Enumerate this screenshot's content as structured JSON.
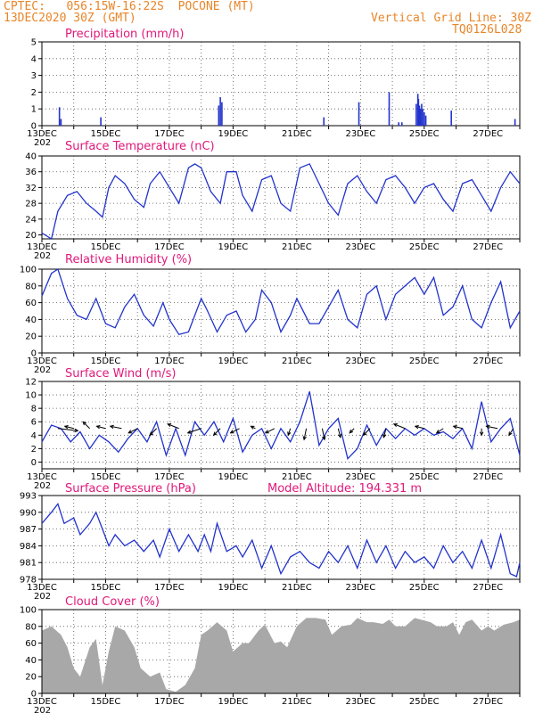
{
  "header": {
    "line1": "CPTEC:   056:15W-16:22S  POCONE (MT)",
    "line2": "13DEC2020 30Z (GMT)",
    "grid_note": "Vertical Grid Line: 30Z",
    "code": "TQ0126L028"
  },
  "colors": {
    "header": "#e8862a",
    "title": "#e0187a",
    "line": "#2233cc",
    "cloud": "#a8a8a8"
  },
  "x_axis": {
    "range_days": [
      13,
      28
    ],
    "tick_labels": [
      "13DEC",
      "15DEC",
      "17DEC",
      "19DEC",
      "21DEC",
      "23DEC",
      "25DEC",
      "27DEC"
    ],
    "year_fragment": "202"
  },
  "chart_data": [
    {
      "id": "precip",
      "type": "bar",
      "title": "Precipitation (mm/h)",
      "ylim": [
        0,
        5
      ],
      "yticks": [
        0,
        1,
        2,
        3,
        4,
        5
      ],
      "points": [
        [
          13.55,
          1.1
        ],
        [
          13.6,
          0.4
        ],
        [
          14.85,
          0.5
        ],
        [
          18.55,
          1.2
        ],
        [
          18.6,
          1.7
        ],
        [
          18.65,
          1.4
        ],
        [
          21.85,
          0.5
        ],
        [
          22.95,
          1.4
        ],
        [
          23.9,
          2.0
        ],
        [
          24.2,
          0.2
        ],
        [
          24.3,
          0.2
        ],
        [
          24.75,
          1.3
        ],
        [
          24.8,
          1.9
        ],
        [
          24.82,
          1.6
        ],
        [
          24.85,
          1.2
        ],
        [
          24.88,
          1.0
        ],
        [
          24.92,
          1.3
        ],
        [
          24.95,
          1.0
        ],
        [
          25.0,
          0.8
        ],
        [
          25.05,
          0.6
        ],
        [
          25.85,
          0.9
        ],
        [
          27.85,
          0.4
        ]
      ]
    },
    {
      "id": "temp",
      "type": "line",
      "title": "Surface Temperature (nC)",
      "ylim": [
        19,
        40
      ],
      "yticks": [
        20,
        24,
        28,
        32,
        36,
        40
      ],
      "points": [
        [
          13,
          20.5
        ],
        [
          13.3,
          19
        ],
        [
          13.5,
          26
        ],
        [
          13.8,
          30
        ],
        [
          14.1,
          31
        ],
        [
          14.4,
          28
        ],
        [
          14.7,
          26
        ],
        [
          14.9,
          24.5
        ],
        [
          15.1,
          32
        ],
        [
          15.3,
          35
        ],
        [
          15.6,
          33
        ],
        [
          15.9,
          29
        ],
        [
          16.2,
          27
        ],
        [
          16.4,
          33
        ],
        [
          16.7,
          36
        ],
        [
          17.0,
          32
        ],
        [
          17.3,
          28
        ],
        [
          17.6,
          37
        ],
        [
          17.8,
          38
        ],
        [
          18.0,
          37
        ],
        [
          18.3,
          31
        ],
        [
          18.6,
          28
        ],
        [
          18.8,
          36
        ],
        [
          19.1,
          36
        ],
        [
          19.3,
          30
        ],
        [
          19.6,
          26
        ],
        [
          19.9,
          34
        ],
        [
          20.2,
          35
        ],
        [
          20.5,
          28
        ],
        [
          20.8,
          26
        ],
        [
          21.1,
          37
        ],
        [
          21.4,
          38
        ],
        [
          21.7,
          33
        ],
        [
          22.0,
          28
        ],
        [
          22.3,
          25
        ],
        [
          22.6,
          33
        ],
        [
          22.9,
          35
        ],
        [
          23.2,
          31
        ],
        [
          23.5,
          28
        ],
        [
          23.8,
          34
        ],
        [
          24.1,
          35
        ],
        [
          24.4,
          32
        ],
        [
          24.7,
          28
        ],
        [
          25.0,
          32
        ],
        [
          25.3,
          33
        ],
        [
          25.6,
          29
        ],
        [
          25.9,
          26
        ],
        [
          26.2,
          33
        ],
        [
          26.5,
          34
        ],
        [
          26.8,
          30
        ],
        [
          27.1,
          26
        ],
        [
          27.4,
          32
        ],
        [
          27.7,
          36
        ],
        [
          28.0,
          33
        ]
      ]
    },
    {
      "id": "rh",
      "type": "line",
      "title": "Relative Humidity (%)",
      "ylim": [
        0,
        100
      ],
      "yticks": [
        0,
        20,
        40,
        60,
        80,
        100
      ],
      "points": [
        [
          13,
          68
        ],
        [
          13.3,
          95
        ],
        [
          13.5,
          100
        ],
        [
          13.8,
          65
        ],
        [
          14.1,
          45
        ],
        [
          14.4,
          40
        ],
        [
          14.7,
          65
        ],
        [
          15.0,
          35
        ],
        [
          15.3,
          30
        ],
        [
          15.6,
          55
        ],
        [
          15.9,
          70
        ],
        [
          16.2,
          45
        ],
        [
          16.5,
          32
        ],
        [
          16.8,
          60
        ],
        [
          17.0,
          40
        ],
        [
          17.3,
          22
        ],
        [
          17.6,
          25
        ],
        [
          18.0,
          65
        ],
        [
          18.2,
          50
        ],
        [
          18.5,
          25
        ],
        [
          18.8,
          45
        ],
        [
          19.1,
          50
        ],
        [
          19.4,
          25
        ],
        [
          19.7,
          40
        ],
        [
          19.9,
          75
        ],
        [
          20.2,
          60
        ],
        [
          20.5,
          25
        ],
        [
          20.8,
          45
        ],
        [
          21.0,
          65
        ],
        [
          21.4,
          35
        ],
        [
          21.7,
          35
        ],
        [
          22.0,
          55
        ],
        [
          22.3,
          75
        ],
        [
          22.6,
          40
        ],
        [
          22.9,
          30
        ],
        [
          23.2,
          70
        ],
        [
          23.5,
          80
        ],
        [
          23.8,
          40
        ],
        [
          24.1,
          70
        ],
        [
          24.4,
          80
        ],
        [
          24.7,
          90
        ],
        [
          25.0,
          70
        ],
        [
          25.3,
          90
        ],
        [
          25.6,
          45
        ],
        [
          25.9,
          55
        ],
        [
          26.2,
          80
        ],
        [
          26.5,
          40
        ],
        [
          26.8,
          30
        ],
        [
          27.1,
          60
        ],
        [
          27.4,
          85
        ],
        [
          27.7,
          30
        ],
        [
          28.0,
          50
        ]
      ]
    },
    {
      "id": "wind",
      "type": "line",
      "title": "Surface Wind (m/s)",
      "ylim": [
        -1,
        12
      ],
      "yticks": [
        0,
        2,
        4,
        6,
        8,
        10,
        12
      ],
      "points": [
        [
          13,
          3
        ],
        [
          13.3,
          5.5
        ],
        [
          13.6,
          5
        ],
        [
          13.9,
          3
        ],
        [
          14.2,
          4.5
        ],
        [
          14.5,
          2
        ],
        [
          14.8,
          4
        ],
        [
          15.1,
          3
        ],
        [
          15.4,
          1.5
        ],
        [
          15.7,
          3.5
        ],
        [
          16.0,
          5
        ],
        [
          16.3,
          3
        ],
        [
          16.6,
          6
        ],
        [
          16.9,
          1
        ],
        [
          17.2,
          5
        ],
        [
          17.5,
          1
        ],
        [
          17.8,
          6
        ],
        [
          18.1,
          4
        ],
        [
          18.4,
          6
        ],
        [
          18.7,
          3
        ],
        [
          19.0,
          6.5
        ],
        [
          19.3,
          1.5
        ],
        [
          19.6,
          4
        ],
        [
          19.9,
          5
        ],
        [
          20.2,
          2
        ],
        [
          20.5,
          5
        ],
        [
          20.8,
          3
        ],
        [
          21.1,
          6
        ],
        [
          21.4,
          10.5
        ],
        [
          21.7,
          2.5
        ],
        [
          22.0,
          5
        ],
        [
          22.3,
          6.5
        ],
        [
          22.6,
          0.5
        ],
        [
          22.9,
          2
        ],
        [
          23.2,
          5.5
        ],
        [
          23.5,
          2.5
        ],
        [
          23.8,
          5
        ],
        [
          24.1,
          3.5
        ],
        [
          24.4,
          5
        ],
        [
          24.7,
          4
        ],
        [
          25.0,
          5
        ],
        [
          25.3,
          4
        ],
        [
          25.6,
          4.5
        ],
        [
          25.9,
          3.5
        ],
        [
          26.2,
          5
        ],
        [
          26.5,
          2
        ],
        [
          26.8,
          9
        ],
        [
          27.1,
          3
        ],
        [
          27.4,
          5
        ],
        [
          27.7,
          6.5
        ],
        [
          28.0,
          1
        ]
      ],
      "vectors": [
        [
          13.5,
          4.5,
          -0.5
        ],
        [
          14.0,
          -2,
          0.5
        ],
        [
          14.5,
          -1.5,
          1.5
        ],
        [
          15.0,
          -2,
          0.5
        ],
        [
          15.5,
          -2.5,
          0.5
        ],
        [
          16.0,
          -2,
          -1
        ],
        [
          16.6,
          -1.5,
          -1.5
        ],
        [
          17.3,
          -2.5,
          1
        ],
        [
          18.0,
          -3,
          -1
        ],
        [
          18.6,
          -1.5,
          -1.5
        ],
        [
          19.2,
          -2,
          -1
        ],
        [
          19.7,
          -1,
          0.5
        ],
        [
          20.3,
          -2,
          -1
        ],
        [
          20.8,
          -0.5,
          -1.5
        ],
        [
          21.3,
          -0.5,
          -2.5
        ],
        [
          21.8,
          0.5,
          -2.5
        ],
        [
          22.3,
          0.5,
          -2
        ],
        [
          22.8,
          -1,
          -1
        ],
        [
          23.3,
          -1.5,
          -1.5
        ],
        [
          23.8,
          -0.5,
          -2
        ],
        [
          24.4,
          -2.5,
          1
        ],
        [
          25.0,
          -2,
          0.5
        ],
        [
          25.6,
          -1.5,
          -1
        ],
        [
          26.2,
          -2,
          0.5
        ],
        [
          26.8,
          0,
          -1.5
        ],
        [
          27.3,
          -2.5,
          0.5
        ],
        [
          27.8,
          -1,
          -1.5
        ]
      ]
    },
    {
      "id": "pressure",
      "type": "line",
      "title": "Surface Pressure (hPa)",
      "ylim": [
        978,
        993
      ],
      "yticks": [
        978,
        981,
        984,
        987,
        990,
        993
      ],
      "annotation": "Model Altitude: 194.331 m",
      "points": [
        [
          13,
          988
        ],
        [
          13.3,
          990
        ],
        [
          13.5,
          991.5
        ],
        [
          13.7,
          988
        ],
        [
          14.0,
          989
        ],
        [
          14.2,
          986
        ],
        [
          14.5,
          988
        ],
        [
          14.7,
          990
        ],
        [
          14.9,
          987
        ],
        [
          15.1,
          984
        ],
        [
          15.3,
          986
        ],
        [
          15.6,
          984
        ],
        [
          15.9,
          985
        ],
        [
          16.2,
          983
        ],
        [
          16.5,
          985
        ],
        [
          16.7,
          982
        ],
        [
          17.0,
          987
        ],
        [
          17.3,
          983
        ],
        [
          17.6,
          986
        ],
        [
          17.9,
          983
        ],
        [
          18.1,
          986
        ],
        [
          18.3,
          983
        ],
        [
          18.5,
          988
        ],
        [
          18.8,
          983
        ],
        [
          19.1,
          984
        ],
        [
          19.3,
          982
        ],
        [
          19.6,
          985
        ],
        [
          19.9,
          980
        ],
        [
          20.2,
          984
        ],
        [
          20.5,
          979
        ],
        [
          20.8,
          982
        ],
        [
          21.1,
          983
        ],
        [
          21.4,
          981
        ],
        [
          21.7,
          980
        ],
        [
          22.0,
          983
        ],
        [
          22.3,
          981
        ],
        [
          22.6,
          984
        ],
        [
          22.9,
          980
        ],
        [
          23.2,
          985
        ],
        [
          23.5,
          981
        ],
        [
          23.8,
          984
        ],
        [
          24.1,
          980
        ],
        [
          24.4,
          983
        ],
        [
          24.7,
          981
        ],
        [
          25.0,
          982
        ],
        [
          25.3,
          980
        ],
        [
          25.6,
          984
        ],
        [
          25.9,
          981
        ],
        [
          26.2,
          983
        ],
        [
          26.5,
          980
        ],
        [
          26.8,
          985
        ],
        [
          27.1,
          980
        ],
        [
          27.4,
          986
        ],
        [
          27.7,
          979
        ],
        [
          27.9,
          978.5
        ],
        [
          28.0,
          981
        ]
      ]
    },
    {
      "id": "cloud",
      "type": "area",
      "title": "Cloud Cover (%)",
      "ylim": [
        0,
        100
      ],
      "yticks": [
        0,
        20,
        40,
        60,
        80,
        100
      ],
      "points": [
        [
          13,
          75
        ],
        [
          13.3,
          80
        ],
        [
          13.6,
          70
        ],
        [
          13.8,
          55
        ],
        [
          14.0,
          30
        ],
        [
          14.2,
          20
        ],
        [
          14.5,
          55
        ],
        [
          14.7,
          65
        ],
        [
          14.9,
          10
        ],
        [
          15.1,
          50
        ],
        [
          15.3,
          80
        ],
        [
          15.6,
          75
        ],
        [
          15.9,
          55
        ],
        [
          16.1,
          30
        ],
        [
          16.4,
          20
        ],
        [
          16.7,
          25
        ],
        [
          16.9,
          5
        ],
        [
          17.2,
          2
        ],
        [
          17.5,
          10
        ],
        [
          17.8,
          30
        ],
        [
          18.0,
          70
        ],
        [
          18.2,
          75
        ],
        [
          18.5,
          85
        ],
        [
          18.8,
          75
        ],
        [
          19.0,
          50
        ],
        [
          19.3,
          60
        ],
        [
          19.5,
          60
        ],
        [
          19.8,
          75
        ],
        [
          20.0,
          82
        ],
        [
          20.3,
          60
        ],
        [
          20.5,
          62
        ],
        [
          20.7,
          55
        ],
        [
          21.0,
          80
        ],
        [
          21.3,
          90
        ],
        [
          21.6,
          90
        ],
        [
          21.9,
          88
        ],
        [
          22.1,
          70
        ],
        [
          22.4,
          80
        ],
        [
          22.7,
          82
        ],
        [
          22.9,
          90
        ],
        [
          23.2,
          85
        ],
        [
          23.4,
          85
        ],
        [
          23.7,
          83
        ],
        [
          23.9,
          88
        ],
        [
          24.1,
          80
        ],
        [
          24.4,
          80
        ],
        [
          24.7,
          90
        ],
        [
          24.9,
          88
        ],
        [
          25.2,
          85
        ],
        [
          25.4,
          80
        ],
        [
          25.7,
          80
        ],
        [
          25.9,
          85
        ],
        [
          26.1,
          70
        ],
        [
          26.3,
          85
        ],
        [
          26.5,
          88
        ],
        [
          26.8,
          75
        ],
        [
          27.0,
          80
        ],
        [
          27.2,
          75
        ],
        [
          27.5,
          82
        ],
        [
          27.8,
          85
        ],
        [
          28.0,
          88
        ]
      ]
    }
  ]
}
